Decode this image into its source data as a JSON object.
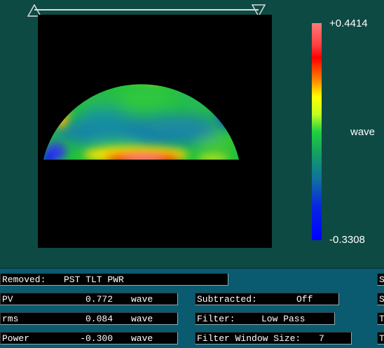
{
  "colorbar": {
    "max_label": "+0.4414",
    "min_label": "-0.3308",
    "unit_label": "wave"
  },
  "removed": {
    "label": "Removed:",
    "value": "PST TLT PWR"
  },
  "stats": {
    "pv": {
      "label": "PV",
      "value": "0.772",
      "unit": "wave"
    },
    "rms": {
      "label": "rms",
      "value": "0.084",
      "unit": "wave"
    },
    "power": {
      "label": "Power",
      "value": "-0.300",
      "unit": "wave"
    }
  },
  "controls": {
    "subtracted": {
      "label": "Subtracted:",
      "value": "Off"
    },
    "filter": {
      "label": "Filter:",
      "value": "Low Pass"
    },
    "filter_window": {
      "label": "Filter Window Size:",
      "value": "7"
    }
  },
  "right_edge_buttons": [
    "S",
    "S",
    "T",
    "T"
  ],
  "colors": {
    "background": "#0e4a44",
    "panel": "#0a5a70",
    "field": "#000000"
  }
}
